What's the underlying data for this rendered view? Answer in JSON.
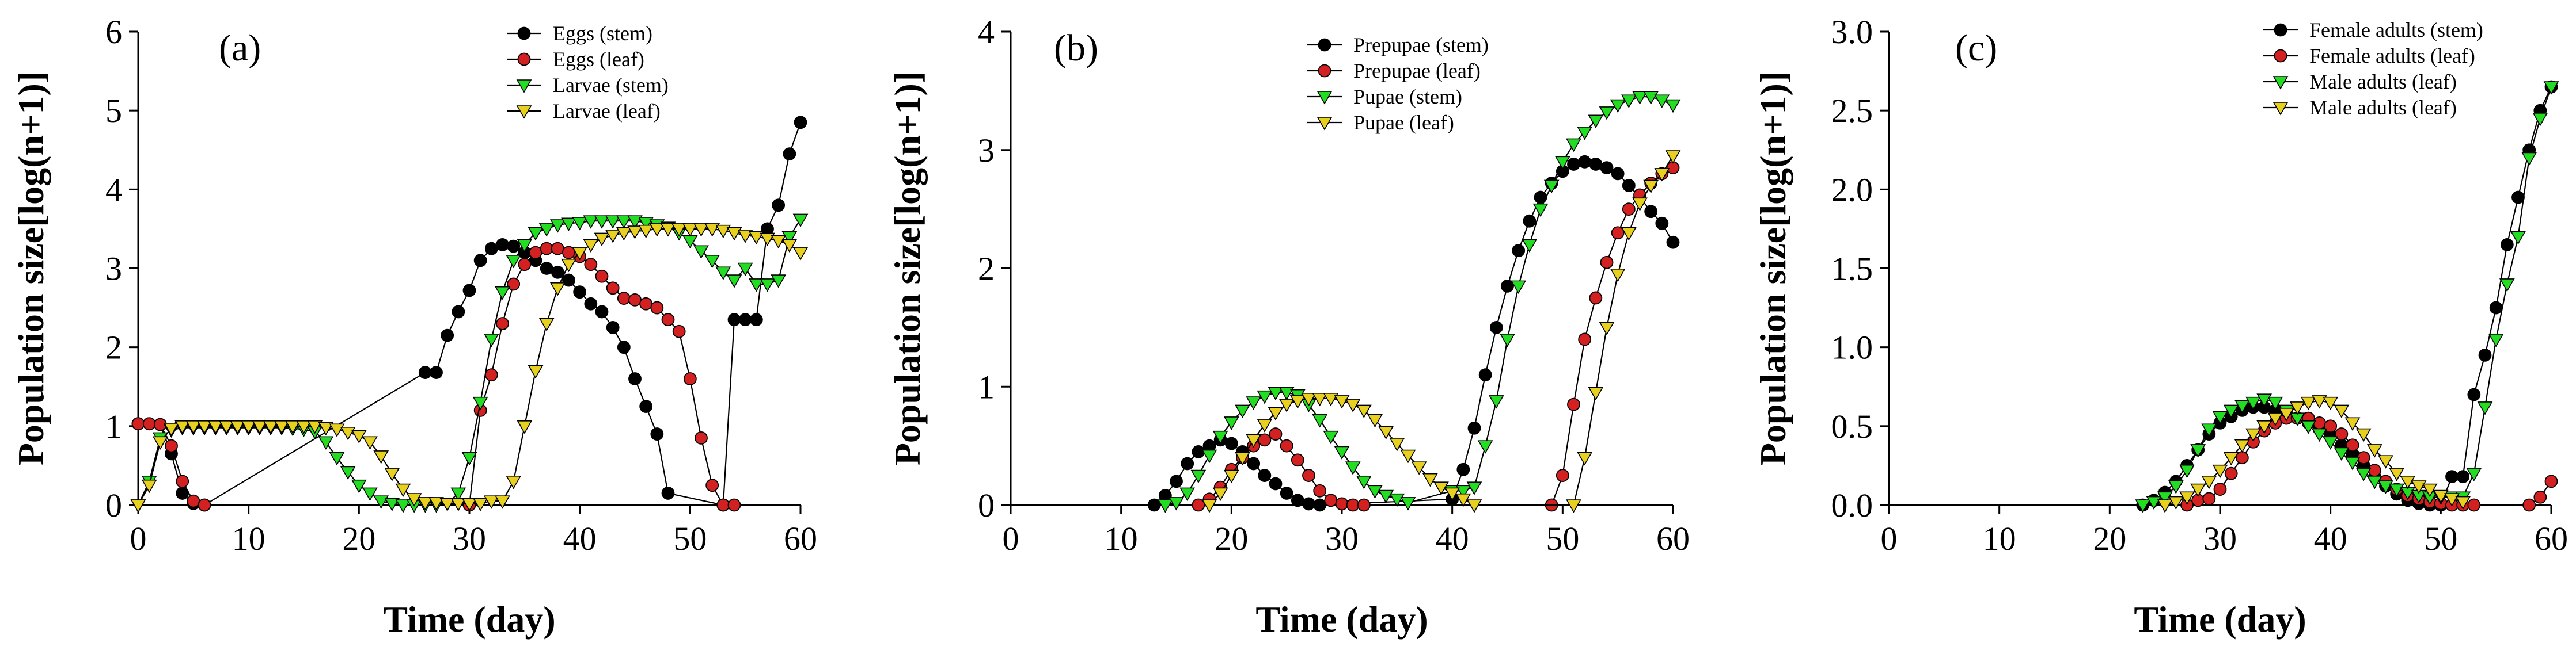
{
  "chart_data": [
    {
      "type": "line",
      "panel_label": "(a)",
      "xlabel": "Time (day)",
      "ylabel": "Population size[log(n+1)]",
      "xlim": [
        0,
        60
      ],
      "ylim": [
        0,
        6
      ],
      "xticks": [
        0,
        10,
        20,
        30,
        40,
        50,
        60
      ],
      "yticks": [
        0,
        1,
        2,
        3,
        4,
        5,
        6
      ],
      "ytick_labels": [
        "0",
        "1",
        "2",
        "3",
        "4",
        "5",
        "6"
      ],
      "legend_position": "top-right",
      "series": [
        {
          "name": "Eggs (stem)",
          "marker": "circle",
          "color": "#000000",
          "x": [
            0,
            1,
            2,
            3,
            4,
            5,
            6,
            26,
            27,
            28,
            29,
            30,
            31,
            32,
            33,
            34,
            35,
            36,
            37,
            38,
            39,
            40,
            41,
            42,
            43,
            44,
            45,
            46,
            47,
            48,
            53,
            54,
            55,
            56,
            57,
            58,
            59,
            60
          ],
          "y": [
            1.03,
            1.03,
            1.02,
            0.65,
            0.15,
            0.02,
            0,
            1.68,
            1.68,
            2.15,
            2.45,
            2.72,
            3.1,
            3.25,
            3.3,
            3.28,
            3.2,
            3.1,
            3.0,
            2.95,
            2.85,
            2.7,
            2.55,
            2.45,
            2.25,
            2.0,
            1.6,
            1.25,
            0.9,
            0.15,
            0,
            2.35,
            2.35,
            2.35,
            3.5,
            3.8,
            4.45,
            4.85
          ]
        },
        {
          "name": "Eggs (leaf)",
          "marker": "circle",
          "color": "#d32020",
          "x": [
            0,
            1,
            2,
            3,
            4,
            5,
            6,
            30,
            31,
            32,
            33,
            34,
            35,
            36,
            37,
            38,
            39,
            40,
            41,
            42,
            43,
            44,
            45,
            46,
            47,
            48,
            49,
            50,
            51,
            52,
            53,
            54
          ],
          "y": [
            1.03,
            1.03,
            1.02,
            0.75,
            0.3,
            0.05,
            0,
            0,
            1.2,
            1.65,
            2.3,
            2.8,
            3.05,
            3.2,
            3.25,
            3.25,
            3.2,
            3.15,
            3.05,
            2.9,
            2.75,
            2.62,
            2.6,
            2.55,
            2.5,
            2.35,
            2.2,
            1.6,
            0.85,
            0.25,
            0,
            0
          ]
        },
        {
          "name": "Larvae (stem)",
          "marker": "triangle-down",
          "color": "#22dd22",
          "x": [
            0,
            1,
            2,
            3,
            4,
            5,
            6,
            7,
            8,
            9,
            10,
            11,
            12,
            13,
            14,
            15,
            16,
            17,
            18,
            19,
            20,
            21,
            22,
            23,
            24,
            25,
            26,
            27,
            28,
            29,
            30,
            31,
            32,
            33,
            34,
            35,
            36,
            37,
            38,
            39,
            40,
            41,
            42,
            43,
            44,
            45,
            46,
            47,
            48,
            49,
            50,
            51,
            52,
            53,
            54,
            55,
            56,
            57,
            58,
            59,
            60
          ],
          "y": [
            0,
            0.3,
            0.85,
            0.95,
            0.98,
            0.98,
            0.98,
            0.98,
            0.98,
            0.98,
            0.98,
            0.98,
            0.98,
            0.98,
            0.97,
            0.96,
            0.93,
            0.8,
            0.6,
            0.42,
            0.25,
            0.15,
            0.05,
            0.02,
            0,
            0,
            0,
            0,
            0.02,
            0.15,
            0.6,
            1.3,
            2.1,
            2.7,
            3.1,
            3.3,
            3.45,
            3.5,
            3.55,
            3.57,
            3.58,
            3.6,
            3.6,
            3.6,
            3.6,
            3.6,
            3.58,
            3.55,
            3.52,
            3.45,
            3.35,
            3.22,
            3.1,
            2.95,
            2.85,
            3.0,
            2.8,
            2.8,
            2.85,
            3.4,
            3.62
          ]
        },
        {
          "name": "Larvae (leaf)",
          "marker": "triangle-down",
          "color": "#e8d020",
          "x": [
            0,
            1,
            2,
            3,
            4,
            5,
            6,
            7,
            8,
            9,
            10,
            11,
            12,
            13,
            14,
            15,
            16,
            17,
            18,
            19,
            20,
            21,
            22,
            23,
            24,
            25,
            26,
            27,
            28,
            29,
            30,
            31,
            32,
            33,
            34,
            35,
            36,
            37,
            38,
            39,
            40,
            41,
            42,
            43,
            44,
            45,
            46,
            47,
            48,
            49,
            50,
            51,
            52,
            53,
            54,
            55,
            56,
            57,
            58,
            59,
            60
          ],
          "y": [
            0,
            0.25,
            0.8,
            0.97,
            1.0,
            1.0,
            1.0,
            1.0,
            1.0,
            1.0,
            1.0,
            1.0,
            1.0,
            1.0,
            1.0,
            1.0,
            1.0,
            0.98,
            0.96,
            0.92,
            0.88,
            0.8,
            0.62,
            0.4,
            0.2,
            0.08,
            0.03,
            0.03,
            0.02,
            0.02,
            0.02,
            0.02,
            0.05,
            0.05,
            0.3,
            1.0,
            1.7,
            2.3,
            2.75,
            3.05,
            3.2,
            3.3,
            3.38,
            3.42,
            3.45,
            3.47,
            3.48,
            3.5,
            3.5,
            3.5,
            3.5,
            3.5,
            3.5,
            3.48,
            3.45,
            3.42,
            3.4,
            3.38,
            3.35,
            3.3,
            3.2
          ]
        }
      ]
    },
    {
      "type": "line",
      "panel_label": "(b)",
      "xlabel": "Time (day)",
      "ylabel": "Population size[log(n+1)]",
      "xlim": [
        0,
        60
      ],
      "ylim": [
        0,
        4
      ],
      "xticks": [
        0,
        10,
        20,
        30,
        40,
        50,
        60
      ],
      "yticks": [
        0,
        1,
        2,
        3,
        4
      ],
      "ytick_labels": [
        "0",
        "1",
        "2",
        "3",
        "4"
      ],
      "legend_position": "top-right",
      "series": [
        {
          "name": "Prepupae (stem)",
          "marker": "circle",
          "color": "#000000",
          "x": [
            13,
            14,
            15,
            16,
            17,
            18,
            19,
            20,
            21,
            22,
            23,
            24,
            25,
            26,
            27,
            28,
            40,
            41,
            42,
            43,
            44,
            45,
            46,
            47,
            48,
            49,
            50,
            51,
            52,
            53,
            54,
            55,
            56,
            57,
            58,
            59,
            60
          ],
          "y": [
            0,
            0.08,
            0.2,
            0.35,
            0.45,
            0.5,
            0.55,
            0.52,
            0.45,
            0.35,
            0.25,
            0.18,
            0.1,
            0.04,
            0.01,
            0,
            0.05,
            0.3,
            0.65,
            1.1,
            1.5,
            1.85,
            2.15,
            2.4,
            2.6,
            2.72,
            2.82,
            2.88,
            2.9,
            2.88,
            2.85,
            2.8,
            2.7,
            2.6,
            2.48,
            2.38,
            2.22
          ]
        },
        {
          "name": "Prepupae (leaf)",
          "marker": "circle",
          "color": "#d32020",
          "x": [
            17,
            18,
            19,
            20,
            21,
            22,
            23,
            24,
            25,
            26,
            27,
            28,
            29,
            30,
            31,
            32,
            49,
            50,
            51,
            52,
            53,
            54,
            55,
            56,
            57,
            58,
            59,
            60
          ],
          "y": [
            0,
            0.05,
            0.15,
            0.3,
            0.4,
            0.5,
            0.55,
            0.6,
            0.5,
            0.38,
            0.25,
            0.12,
            0.04,
            0.01,
            0,
            0,
            0,
            0.25,
            0.85,
            1.4,
            1.75,
            2.05,
            2.3,
            2.5,
            2.62,
            2.72,
            2.8,
            2.85
          ]
        },
        {
          "name": "Pupae (stem)",
          "marker": "triangle-down",
          "color": "#22dd22",
          "x": [
            14,
            15,
            16,
            17,
            18,
            19,
            20,
            21,
            22,
            23,
            24,
            25,
            26,
            27,
            28,
            29,
            30,
            31,
            32,
            33,
            34,
            35,
            36,
            40,
            41,
            42,
            43,
            44,
            45,
            46,
            47,
            48,
            49,
            50,
            51,
            52,
            53,
            54,
            55,
            56,
            57,
            58,
            59,
            60
          ],
          "y": [
            0,
            0.02,
            0.1,
            0.25,
            0.42,
            0.58,
            0.7,
            0.8,
            0.87,
            0.92,
            0.95,
            0.95,
            0.93,
            0.85,
            0.72,
            0.58,
            0.45,
            0.32,
            0.2,
            0.12,
            0.08,
            0.05,
            0.02,
            0.12,
            0.12,
            0.15,
            0.5,
            0.88,
            1.4,
            1.85,
            2.2,
            2.5,
            2.7,
            2.9,
            3.05,
            3.15,
            3.25,
            3.32,
            3.38,
            3.42,
            3.45,
            3.45,
            3.42,
            3.38
          ]
        },
        {
          "name": "Pupae (leaf)",
          "marker": "triangle-down",
          "color": "#e8d020",
          "x": [
            18,
            19,
            20,
            21,
            22,
            23,
            24,
            25,
            26,
            27,
            28,
            29,
            30,
            31,
            32,
            33,
            34,
            35,
            36,
            37,
            38,
            39,
            40,
            41,
            42,
            51,
            52,
            53,
            54,
            55,
            56,
            57,
            58,
            59,
            60
          ],
          "y": [
            0,
            0.1,
            0.25,
            0.4,
            0.55,
            0.68,
            0.78,
            0.85,
            0.88,
            0.9,
            0.9,
            0.9,
            0.88,
            0.85,
            0.8,
            0.72,
            0.62,
            0.52,
            0.42,
            0.32,
            0.22,
            0.15,
            0.1,
            0.05,
            0,
            0,
            0.4,
            0.95,
            1.5,
            1.95,
            2.3,
            2.55,
            2.7,
            2.8,
            2.95
          ]
        }
      ]
    },
    {
      "type": "line",
      "panel_label": "(c)",
      "xlabel": "Time (day)",
      "ylabel": "Population size[log(n+1)]",
      "xlim": [
        0,
        60
      ],
      "ylim": [
        0,
        3
      ],
      "xticks": [
        0,
        10,
        20,
        30,
        40,
        50,
        60
      ],
      "yticks": [
        0,
        0.5,
        1,
        1.5,
        2,
        2.5,
        3
      ],
      "ytick_labels": [
        "0.0",
        "0.5",
        "1.0",
        "1.5",
        "2.0",
        "2.5",
        "3.0"
      ],
      "legend_position": "top-right",
      "series": [
        {
          "name": "Female adults (stem)",
          "marker": "circle",
          "color": "#000000",
          "x": [
            23,
            24,
            25,
            26,
            27,
            28,
            29,
            30,
            31,
            32,
            33,
            34,
            35,
            36,
            37,
            38,
            39,
            40,
            41,
            42,
            43,
            44,
            45,
            46,
            47,
            48,
            49,
            50,
            51,
            52,
            53,
            54,
            55,
            56,
            57,
            58,
            59,
            60
          ],
          "y": [
            0,
            0.03,
            0.08,
            0.15,
            0.25,
            0.35,
            0.45,
            0.52,
            0.56,
            0.6,
            0.62,
            0.62,
            0.6,
            0.58,
            0.55,
            0.52,
            0.48,
            0.44,
            0.38,
            0.32,
            0.25,
            0.18,
            0.12,
            0.07,
            0.03,
            0.01,
            0,
            0,
            0.18,
            0.18,
            0.7,
            0.95,
            1.25,
            1.65,
            1.95,
            2.25,
            2.5,
            2.65
          ]
        },
        {
          "name": "Female adults (leaf)",
          "marker": "circle",
          "color": "#d32020",
          "x": [
            27,
            28,
            29,
            30,
            31,
            32,
            33,
            34,
            35,
            36,
            37,
            38,
            39,
            40,
            41,
            42,
            43,
            44,
            45,
            46,
            47,
            48,
            49,
            50,
            51,
            52,
            53,
            58,
            59,
            60
          ],
          "y": [
            0,
            0.03,
            0.04,
            0.1,
            0.2,
            0.3,
            0.4,
            0.47,
            0.52,
            0.55,
            0.55,
            0.55,
            0.52,
            0.5,
            0.45,
            0.38,
            0.3,
            0.22,
            0.15,
            0.1,
            0.06,
            0.04,
            0.02,
            0.01,
            0,
            0,
            0,
            0,
            0.05,
            0.15
          ]
        },
        {
          "name": "Male adults (leaf)",
          "marker": "triangle-down",
          "color": "#22dd22",
          "x": [
            23,
            24,
            25,
            26,
            27,
            28,
            29,
            30,
            31,
            32,
            33,
            34,
            35,
            36,
            37,
            38,
            39,
            40,
            41,
            42,
            43,
            44,
            45,
            46,
            47,
            48,
            49,
            50,
            51,
            52,
            53,
            54,
            55,
            56,
            57,
            58,
            59,
            60
          ],
          "y": [
            0,
            0.02,
            0.05,
            0.12,
            0.22,
            0.35,
            0.48,
            0.56,
            0.6,
            0.63,
            0.65,
            0.67,
            0.65,
            0.6,
            0.55,
            0.5,
            0.45,
            0.4,
            0.33,
            0.27,
            0.2,
            0.15,
            0.12,
            0.1,
            0.08,
            0.06,
            0.05,
            0.05,
            0.05,
            0.05,
            0.2,
            0.62,
            1.05,
            1.4,
            1.7,
            2.2,
            2.45,
            2.65
          ]
        },
        {
          "name": "Male adults (leaf)",
          "marker": "triangle-down",
          "color": "#e8d020",
          "x": [
            25,
            26,
            27,
            28,
            29,
            30,
            31,
            32,
            33,
            34,
            35,
            36,
            37,
            38,
            39,
            40,
            41,
            42,
            43,
            44,
            45,
            46,
            47,
            48,
            49,
            50,
            51,
            52
          ],
          "y": [
            0,
            0.02,
            0.05,
            0.1,
            0.15,
            0.22,
            0.3,
            0.38,
            0.45,
            0.5,
            0.55,
            0.58,
            0.62,
            0.65,
            0.66,
            0.65,
            0.6,
            0.52,
            0.45,
            0.35,
            0.28,
            0.2,
            0.15,
            0.12,
            0.1,
            0.06,
            0.04,
            0.02
          ]
        }
      ]
    }
  ]
}
